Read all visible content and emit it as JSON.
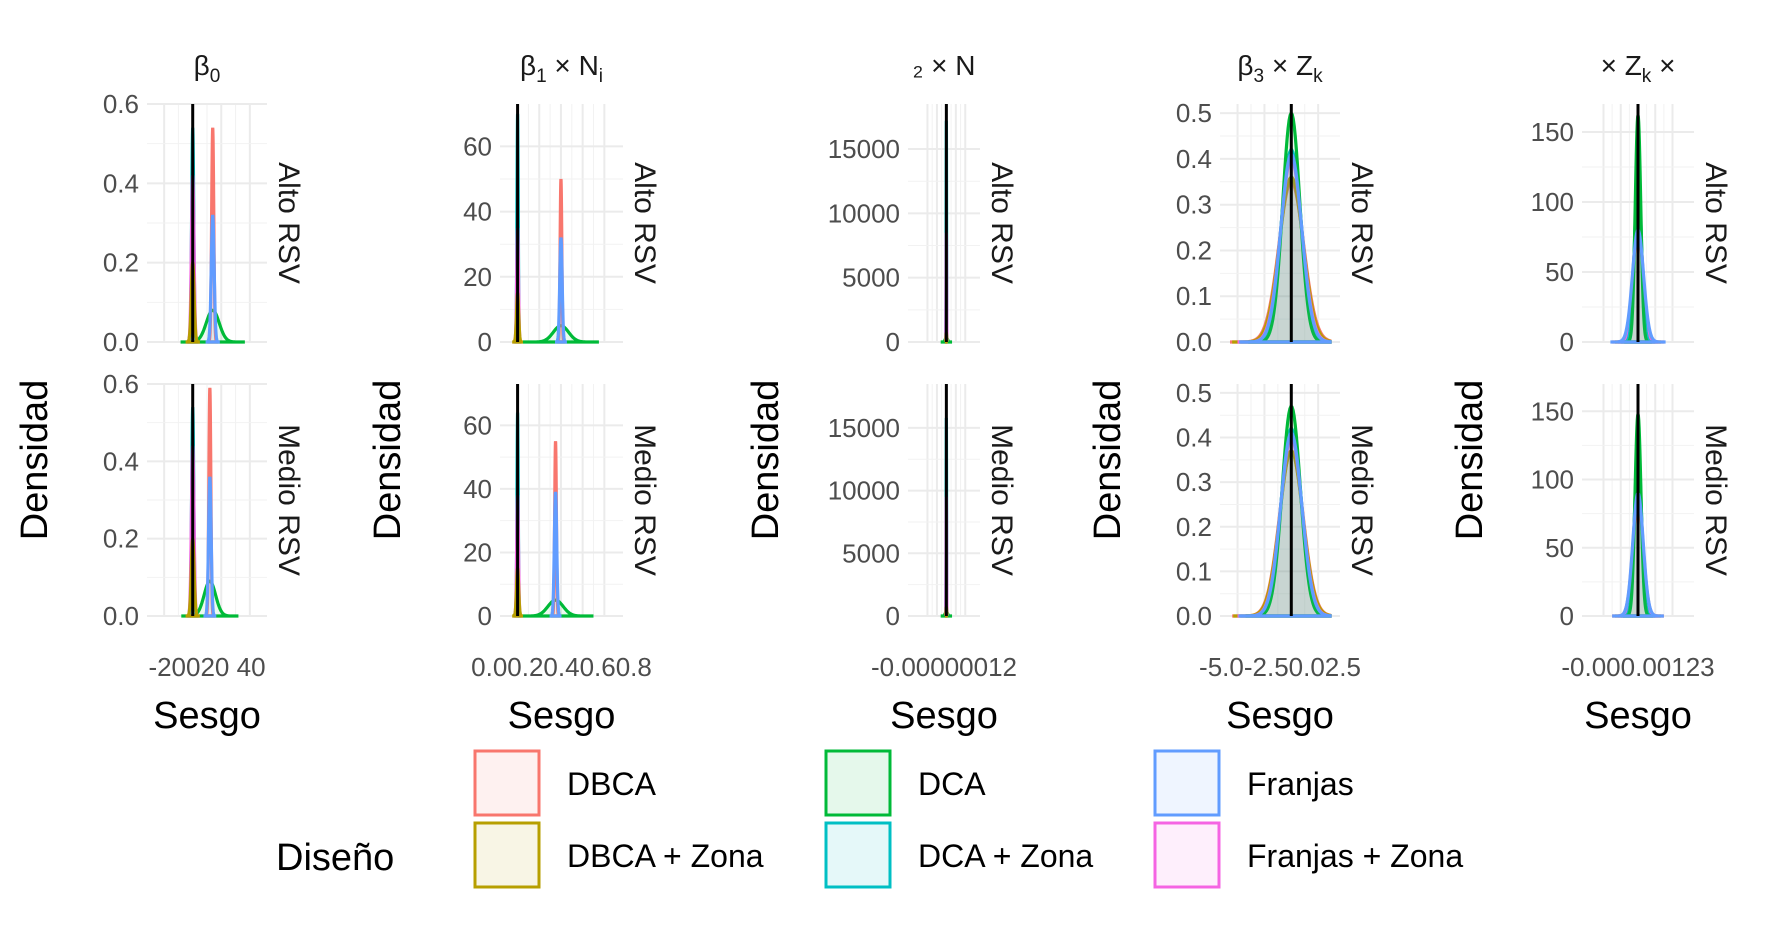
{
  "chart_data": {
    "type": "density",
    "y_axis_title": "Densidad",
    "x_axis_title": "Sesgo",
    "rows": [
      "Alto RSV",
      "Medio RSV"
    ],
    "legend": {
      "title": "Diseño",
      "entries": [
        {
          "name": "DBCA",
          "color": "#F8766D"
        },
        {
          "name": "DBCA + Zona",
          "color": "#B79F00"
        },
        {
          "name": "DCA",
          "color": "#00BA38"
        },
        {
          "name": "DCA + Zona",
          "color": "#00BFC4"
        },
        {
          "name": "Franjas",
          "color": "#619CFF"
        },
        {
          "name": "Franjas + Zona",
          "color": "#F564E3"
        }
      ]
    },
    "panels": [
      {
        "title_parts": [
          [
            "β",
            null
          ],
          [
            "0",
            "sub"
          ]
        ],
        "xlim": [
          -25,
          45
        ],
        "xticks": [
          {
            "v": -20,
            "label": "-20"
          },
          {
            "v": 0,
            "label": "0"
          },
          {
            "v": 20,
            "label": "20"
          },
          {
            "v": 40,
            "label": "40"
          }
        ],
        "xtick_text": "-20020 40",
        "ylim": [
          0,
          0.6
        ],
        "yticks": [
          {
            "v": 0,
            "label": "0.0"
          },
          {
            "v": 0.2,
            "label": "0.2"
          },
          {
            "v": 0.4,
            "label": "0.4"
          },
          {
            "v": 0.6,
            "label": "0.6"
          }
        ],
        "rows": [
          {
            "row": "Alto RSV",
            "curves": [
              {
                "design": "DCA",
                "mu": 14,
                "sigma": 4.5,
                "peak": 0.08
              },
              {
                "design": "DBCA",
                "mu": 14,
                "sigma": 0.75,
                "peak": 0.54
              },
              {
                "design": "Franjas",
                "mu": 14,
                "sigma": 1.0,
                "peak": 0.32
              },
              {
                "design": "DCA + Zona",
                "mu": 0,
                "sigma": 0.75,
                "peak": 0.54
              },
              {
                "design": "Franjas + Zona",
                "mu": 0,
                "sigma": 0.9,
                "peak": 0.42
              },
              {
                "design": "DBCA + Zona",
                "mu": 0,
                "sigma": 1.0,
                "peak": 0.2
              }
            ]
          },
          {
            "row": "Medio RSV",
            "curves": [
              {
                "design": "DCA",
                "mu": 12,
                "sigma": 4.0,
                "peak": 0.09
              },
              {
                "design": "DBCA",
                "mu": 12,
                "sigma": 0.7,
                "peak": 0.59
              },
              {
                "design": "Franjas",
                "mu": 12,
                "sigma": 0.9,
                "peak": 0.36
              },
              {
                "design": "DCA + Zona",
                "mu": 0,
                "sigma": 0.75,
                "peak": 0.54
              },
              {
                "design": "Franjas + Zona",
                "mu": 0,
                "sigma": 0.9,
                "peak": 0.44
              },
              {
                "design": "DBCA + Zona",
                "mu": 0,
                "sigma": 1.0,
                "peak": 0.2
              }
            ]
          }
        ]
      },
      {
        "title_parts": [
          [
            "β",
            null
          ],
          [
            "1",
            "sub"
          ],
          [
            " × N",
            null
          ],
          [
            "i",
            "sub"
          ]
        ],
        "xlim": [
          -0.07,
          0.88
        ],
        "xticks": [
          {
            "v": 0.0,
            "label": "0.0"
          },
          {
            "v": 0.2,
            "label": "0.2"
          },
          {
            "v": 0.4,
            "label": "0.4"
          },
          {
            "v": 0.6,
            "label": "0.6"
          },
          {
            "v": 0.8,
            "label": "0.8"
          }
        ],
        "xtick_text": "0.00.20.40.60.8",
        "ylim": [
          0,
          73
        ],
        "yticks": [
          {
            "v": 0,
            "label": "0"
          },
          {
            "v": 20,
            "label": "20"
          },
          {
            "v": 40,
            "label": "40"
          },
          {
            "v": 60,
            "label": "60"
          }
        ],
        "rows": [
          {
            "row": "Alto RSV",
            "curves": [
              {
                "design": "DCA",
                "mu": 0.4,
                "sigma": 0.07,
                "peak": 5
              },
              {
                "design": "DBCA",
                "mu": 0.4,
                "sigma": 0.008,
                "peak": 50
              },
              {
                "design": "Franjas",
                "mu": 0.4,
                "sigma": 0.011,
                "peak": 32
              },
              {
                "design": "DCA + Zona",
                "mu": 0.0,
                "sigma": 0.006,
                "peak": 70
              },
              {
                "design": "Franjas + Zona",
                "mu": 0.0,
                "sigma": 0.008,
                "peak": 35
              },
              {
                "design": "DBCA + Zona",
                "mu": 0.0,
                "sigma": 0.01,
                "peak": 15
              }
            ]
          },
          {
            "row": "Medio RSV",
            "curves": [
              {
                "design": "DCA",
                "mu": 0.35,
                "sigma": 0.07,
                "peak": 5
              },
              {
                "design": "DBCA",
                "mu": 0.35,
                "sigma": 0.008,
                "peak": 55
              },
              {
                "design": "Franjas",
                "mu": 0.35,
                "sigma": 0.011,
                "peak": 39
              },
              {
                "design": "DCA + Zona",
                "mu": 0.0,
                "sigma": 0.006,
                "peak": 64
              },
              {
                "design": "Franjas + Zona",
                "mu": 0.0,
                "sigma": 0.008,
                "peak": 38
              },
              {
                "design": "DBCA + Zona",
                "mu": 0.0,
                "sigma": 0.01,
                "peak": 15
              }
            ]
          }
        ]
      },
      {
        "title_parts": [
          [
            "₂ × N",
            null
          ]
        ],
        "xlim": [
          -0.003,
          0.0025
        ],
        "xticks": [
          {
            "v": -0.002,
            "label": "-0.002"
          },
          {
            "v": -0.001,
            "label": "-0.001"
          },
          {
            "v": 0.0,
            "label": "0.000"
          },
          {
            "v": 0.001,
            "label": "0.001"
          },
          {
            "v": 0.002,
            "label": "0.002"
          }
        ],
        "xtick_text": "-0.00000012",
        "ylim": [
          0,
          18500
        ],
        "yticks": [
          {
            "v": 0,
            "label": "0"
          },
          {
            "v": 5000,
            "label": "5000"
          },
          {
            "v": 10000,
            "label": "10000"
          },
          {
            "v": 15000,
            "label": "15000"
          }
        ],
        "rows": [
          {
            "row": "Alto RSV",
            "curves": [
              {
                "design": "DCA",
                "mu": 0.0,
                "sigma": 0.00012,
                "peak": 350
              },
              {
                "design": "DBCA",
                "mu": 0.0,
                "sigma": 2e-05,
                "peak": 900
              },
              {
                "design": "Franjas",
                "mu": 0.0,
                "sigma": 2e-05,
                "peak": 600
              },
              {
                "design": "DCA + Zona",
                "mu": 0.0,
                "sigma": 2.5e-05,
                "peak": 17200
              },
              {
                "design": "Franjas + Zona",
                "mu": 0.0,
                "sigma": 2.5e-05,
                "peak": 8500
              },
              {
                "design": "DBCA + Zona",
                "mu": 0.0,
                "sigma": 3e-05,
                "peak": 700
              }
            ]
          },
          {
            "row": "Medio RSV",
            "curves": [
              {
                "design": "DCA",
                "mu": 0.0,
                "sigma": 0.00012,
                "peak": 350
              },
              {
                "design": "DBCA",
                "mu": 0.0,
                "sigma": 2e-05,
                "peak": 900
              },
              {
                "design": "Franjas",
                "mu": 0.0,
                "sigma": 2e-05,
                "peak": 600
              },
              {
                "design": "DCA + Zona",
                "mu": 0.0,
                "sigma": 2.5e-05,
                "peak": 15800
              },
              {
                "design": "Franjas + Zona",
                "mu": 0.0,
                "sigma": 2.5e-05,
                "peak": 9500
              },
              {
                "design": "DBCA + Zona",
                "mu": 0.0,
                "sigma": 3e-05,
                "peak": 700
              }
            ]
          }
        ]
      },
      {
        "title_parts": [
          [
            "β",
            null
          ],
          [
            "3",
            "sub"
          ],
          [
            " × Z",
            null
          ],
          [
            "k",
            "sub"
          ]
        ],
        "xlim": [
          -5.7,
          3.6
        ],
        "xticks": [
          {
            "v": -5.0,
            "label": "-5.0"
          },
          {
            "v": -2.5,
            "label": "-2.5"
          },
          {
            "v": 0.0,
            "label": "0.0"
          },
          {
            "v": 2.5,
            "label": "2.5"
          }
        ],
        "xtick_text": "-5.0-2.50.02.5",
        "ylim": [
          0,
          0.52
        ],
        "yticks": [
          {
            "v": 0,
            "label": "0.0"
          },
          {
            "v": 0.1,
            "label": "0.1"
          },
          {
            "v": 0.2,
            "label": "0.2"
          },
          {
            "v": 0.3,
            "label": "0.3"
          },
          {
            "v": 0.4,
            "label": "0.4"
          },
          {
            "v": 0.5,
            "label": "0.5"
          }
        ],
        "rows": [
          {
            "row": "Alto RSV",
            "curves": [
              {
                "design": "DBCA",
                "mu": 0.0,
                "sigma": 1.15,
                "peak": 0.35
              },
              {
                "design": "DBCA + Zona",
                "mu": 0.0,
                "sigma": 1.1,
                "peak": 0.36
              },
              {
                "design": "Franjas + Zona",
                "mu": 0.0,
                "sigma": 1.0,
                "peak": 0.4
              },
              {
                "design": "DCA + Zona",
                "mu": 0.0,
                "sigma": 0.95,
                "peak": 0.42
              },
              {
                "design": "DCA",
                "mu": 0.0,
                "sigma": 0.8,
                "peak": 0.5
              },
              {
                "design": "Franjas",
                "mu": 0.0,
                "sigma": 0.97,
                "peak": 0.41
              }
            ]
          },
          {
            "row": "Medio RSV",
            "curves": [
              {
                "design": "DBCA",
                "mu": 0.0,
                "sigma": 1.1,
                "peak": 0.37
              },
              {
                "design": "DBCA + Zona",
                "mu": 0.0,
                "sigma": 1.08,
                "peak": 0.37
              },
              {
                "design": "Franjas + Zona",
                "mu": 0.0,
                "sigma": 1.0,
                "peak": 0.4
              },
              {
                "design": "DCA + Zona",
                "mu": 0.0,
                "sigma": 0.95,
                "peak": 0.42
              },
              {
                "design": "DCA",
                "mu": 0.0,
                "sigma": 0.85,
                "peak": 0.47
              },
              {
                "design": "Franjas",
                "mu": 0.0,
                "sigma": 0.98,
                "peak": 0.41
              }
            ]
          }
        ]
      },
      {
        "title_parts": [
          [
            "× Z",
            null
          ],
          [
            "k",
            "sub"
          ],
          [
            " ×",
            null
          ]
        ],
        "xlim": [
          -0.04,
          0.04
        ],
        "xticks": [
          {
            "v": -0.03,
            "label": "-0.03"
          },
          {
            "v": -0.015,
            "label": "-0.015"
          },
          {
            "v": 0.0,
            "label": "0.00"
          },
          {
            "v": 0.015,
            "label": "0.015"
          },
          {
            "v": 0.03,
            "label": "0.03"
          }
        ],
        "xtick_text": "-0.000.00123",
        "ylim": [
          0,
          170
        ],
        "yticks": [
          {
            "v": 0,
            "label": "0"
          },
          {
            "v": 50,
            "label": "50"
          },
          {
            "v": 100,
            "label": "100"
          },
          {
            "v": 150,
            "label": "150"
          }
        ],
        "rows": [
          {
            "row": "Alto RSV",
            "curves": [
              {
                "design": "DBCA",
                "mu": 0.0,
                "sigma": 0.0045,
                "peak": 80
              },
              {
                "design": "DBCA + Zona",
                "mu": 0.0,
                "sigma": 0.004,
                "peak": 90
              },
              {
                "design": "Franjas + Zona",
                "mu": 0.0,
                "sigma": 0.0035,
                "peak": 100
              },
              {
                "design": "DCA + Zona",
                "mu": 0.0,
                "sigma": 0.003,
                "peak": 120
              },
              {
                "design": "DCA",
                "mu": 0.0,
                "sigma": 0.0024,
                "peak": 162
              },
              {
                "design": "Franjas",
                "mu": 0.0,
                "sigma": 0.0048,
                "peak": 80
              }
            ]
          },
          {
            "row": "Medio RSV",
            "curves": [
              {
                "design": "DBCA",
                "mu": 0.0,
                "sigma": 0.0045,
                "peak": 85
              },
              {
                "design": "DBCA + Zona",
                "mu": 0.0,
                "sigma": 0.004,
                "peak": 95
              },
              {
                "design": "Franjas + Zona",
                "mu": 0.0,
                "sigma": 0.0035,
                "peak": 105
              },
              {
                "design": "DCA + Zona",
                "mu": 0.0,
                "sigma": 0.003,
                "peak": 125
              },
              {
                "design": "DCA",
                "mu": 0.0,
                "sigma": 0.0026,
                "peak": 148
              },
              {
                "design": "Franjas",
                "mu": 0.0,
                "sigma": 0.0045,
                "peak": 90
              }
            ]
          }
        ]
      }
    ]
  }
}
